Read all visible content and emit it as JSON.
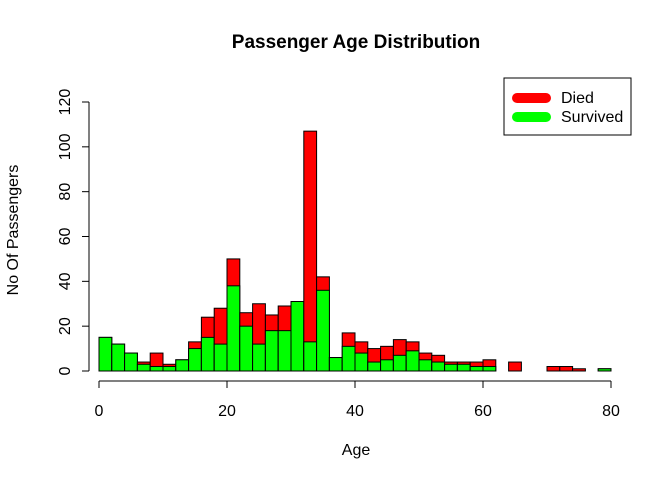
{
  "chart_data": {
    "type": "bar",
    "stacked": true,
    "title": "Passenger Age Distribution",
    "xlabel": "Age",
    "ylabel": "No Of Passengers",
    "xlim": [
      0,
      80
    ],
    "ylim": [
      0,
      120
    ],
    "bin_width": 2,
    "x_ticks": [
      "0",
      "20",
      "40",
      "60",
      "80"
    ],
    "y_ticks": [
      "0",
      "20",
      "40",
      "60",
      "80",
      "100",
      "120"
    ],
    "grid": false,
    "legend_position": "top-right",
    "series": [
      {
        "name": "Died",
        "color": "#ff0000",
        "values": [
          0,
          0,
          0,
          1,
          6,
          1,
          0,
          3,
          9,
          16,
          12,
          6,
          18,
          7,
          11,
          0,
          94,
          6,
          0,
          6,
          5,
          6,
          6,
          7,
          4,
          3,
          3,
          1,
          1,
          2,
          3,
          0,
          4,
          0,
          0,
          2,
          2,
          1,
          0,
          0
        ]
      },
      {
        "name": "Survived",
        "color": "#00ff00",
        "values": [
          15,
          12,
          8,
          3,
          2,
          2,
          5,
          10,
          15,
          12,
          38,
          20,
          12,
          18,
          18,
          31,
          13,
          36,
          6,
          11,
          8,
          4,
          5,
          7,
          9,
          5,
          4,
          3,
          3,
          2,
          2,
          0,
          0,
          0,
          0,
          0,
          0,
          0,
          0,
          1
        ]
      }
    ]
  }
}
